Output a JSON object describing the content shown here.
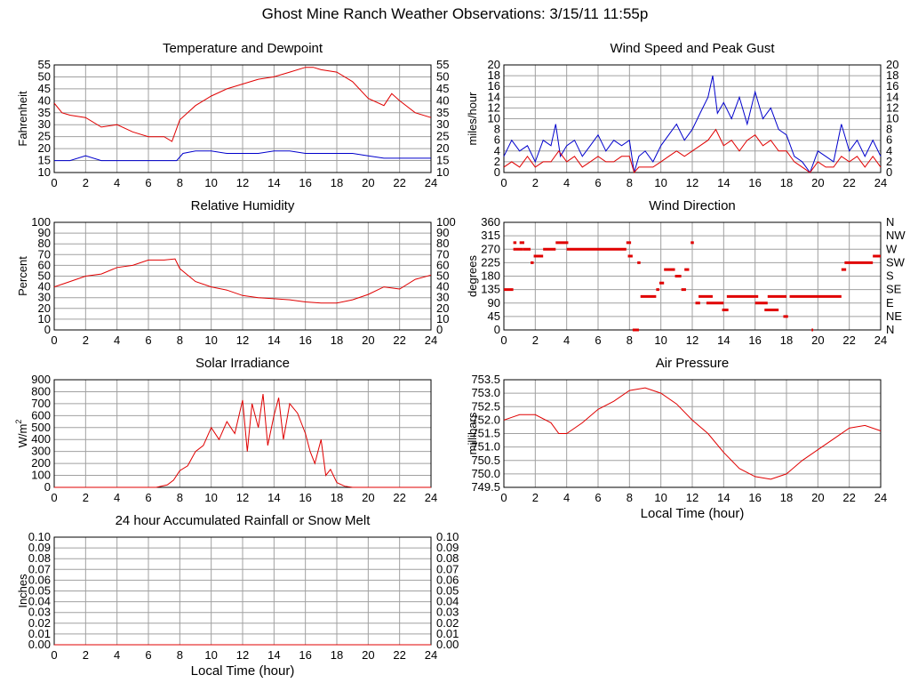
{
  "page": {
    "title": "Ghost Mine Ranch Weather Observations: 3/15/11 11:55p"
  },
  "colors": {
    "primary_series": "#e00000",
    "secondary_series": "#0000cc",
    "grid": "#a0a0a0",
    "frame": "#000000"
  },
  "chart_data": [
    {
      "id": "temperature",
      "type": "line",
      "title": "Temperature and Dewpoint",
      "xlabel": "",
      "ylabel": "Fahrenheit",
      "xlim": [
        0,
        24
      ],
      "ylim": [
        10,
        55
      ],
      "x_ticks": [
        0,
        2,
        4,
        6,
        8,
        10,
        12,
        14,
        16,
        18,
        20,
        22,
        24
      ],
      "y_ticks": [
        10,
        15,
        20,
        25,
        30,
        35,
        40,
        45,
        50,
        55
      ],
      "y_tick_labels": [
        "10",
        "15",
        "20",
        "25",
        "30",
        "35",
        "40",
        "45",
        "50",
        "55"
      ],
      "right_tick_labels": [
        "10",
        "15",
        "20",
        "25",
        "30",
        "35",
        "40",
        "45",
        "50",
        "55"
      ],
      "grid": true,
      "series": [
        {
          "color": "#e00000",
          "x": [
            0,
            0.5,
            1,
            2,
            3,
            4,
            5,
            6,
            7,
            7.5,
            8,
            9,
            10,
            11,
            12,
            13,
            14,
            15,
            16,
            16.5,
            17,
            18,
            19,
            20,
            21,
            21.5,
            22,
            23,
            24
          ],
          "y": [
            39,
            35,
            34,
            33,
            29,
            30,
            27,
            25,
            25,
            23,
            32,
            38,
            42,
            45,
            47,
            49,
            50,
            52,
            54,
            54,
            53,
            52,
            48,
            41,
            38,
            43,
            40,
            35,
            33
          ]
        },
        {
          "color": "#0000cc",
          "x": [
            0,
            1,
            2,
            3,
            4,
            5,
            6,
            7,
            7.8,
            8.2,
            9,
            10,
            11,
            12,
            13,
            14,
            15,
            16,
            17,
            18,
            19,
            20,
            21,
            22,
            23,
            24
          ],
          "y": [
            15,
            15,
            17,
            15,
            15,
            15,
            15,
            15,
            15,
            18,
            19,
            19,
            18,
            18,
            18,
            19,
            19,
            18,
            18,
            18,
            18,
            17,
            16,
            16,
            16,
            16
          ]
        }
      ]
    },
    {
      "id": "wind-speed",
      "type": "line",
      "title": "Wind Speed and Peak Gust",
      "xlabel": "",
      "ylabel": "miles/hour",
      "xlim": [
        0,
        24
      ],
      "ylim": [
        0,
        20
      ],
      "x_ticks": [
        0,
        2,
        4,
        6,
        8,
        10,
        12,
        14,
        16,
        18,
        20,
        22,
        24
      ],
      "y_ticks": [
        0,
        2,
        4,
        6,
        8,
        10,
        12,
        14,
        16,
        18,
        20
      ],
      "y_tick_labels": [
        "0",
        "2",
        "4",
        "6",
        "8",
        "10",
        "12",
        "14",
        "16",
        "18",
        "20"
      ],
      "right_tick_labels": [
        "0",
        "2",
        "4",
        "6",
        "8",
        "10",
        "12",
        "14",
        "16",
        "18",
        "20"
      ],
      "grid": true,
      "series": [
        {
          "color": "#0000cc",
          "x": [
            0,
            0.5,
            1,
            1.5,
            2,
            2.5,
            3,
            3.3,
            3.6,
            4,
            4.5,
            5,
            5.5,
            6,
            6.5,
            7,
            7.5,
            8,
            8.3,
            8.6,
            9,
            9.5,
            10,
            10.5,
            11,
            11.5,
            12,
            12.5,
            13,
            13.3,
            13.6,
            14,
            14.5,
            15,
            15.5,
            16,
            16.5,
            17,
            17.5,
            18,
            18.5,
            19,
            19.5,
            20,
            20.5,
            21,
            21.5,
            22,
            22.5,
            23,
            23.5,
            24
          ],
          "y": [
            3,
            6,
            4,
            5,
            2,
            6,
            5,
            9,
            3,
            5,
            6,
            3,
            5,
            7,
            4,
            6,
            5,
            6,
            0,
            3,
            4,
            2,
            5,
            7,
            9,
            6,
            8,
            11,
            14,
            18,
            11,
            13,
            10,
            14,
            9,
            15,
            10,
            12,
            8,
            7,
            3,
            2,
            0,
            4,
            3,
            2,
            9,
            4,
            6,
            3,
            6,
            3
          ]
        },
        {
          "color": "#e00000",
          "x": [
            0,
            0.5,
            1,
            1.5,
            2,
            2.5,
            3,
            3.5,
            4,
            4.5,
            5,
            5.5,
            6,
            6.5,
            7,
            7.5,
            8,
            8.3,
            8.6,
            9,
            9.5,
            10,
            10.5,
            11,
            11.5,
            12,
            12.5,
            13,
            13.5,
            14,
            14.5,
            15,
            15.5,
            16,
            16.5,
            17,
            17.5,
            18,
            18.5,
            19,
            19.5,
            20,
            20.5,
            21,
            21.5,
            22,
            22.5,
            23,
            23.5,
            24
          ],
          "y": [
            1,
            2,
            1,
            3,
            1,
            2,
            2,
            4,
            2,
            3,
            1,
            2,
            3,
            2,
            2,
            3,
            3,
            0,
            1,
            1,
            1,
            2,
            3,
            4,
            3,
            4,
            5,
            6,
            8,
            5,
            6,
            4,
            6,
            7,
            5,
            6,
            4,
            4,
            2,
            1,
            0,
            2,
            1,
            1,
            3,
            2,
            3,
            1,
            3,
            1
          ]
        }
      ]
    },
    {
      "id": "humidity",
      "type": "line",
      "title": "Relative Humidity",
      "xlabel": "",
      "ylabel": "Percent",
      "xlim": [
        0,
        24
      ],
      "ylim": [
        0,
        100
      ],
      "x_ticks": [
        0,
        2,
        4,
        6,
        8,
        10,
        12,
        14,
        16,
        18,
        20,
        22,
        24
      ],
      "y_ticks": [
        0,
        10,
        20,
        30,
        40,
        50,
        60,
        70,
        80,
        90,
        100
      ],
      "y_tick_labels": [
        "0",
        "10",
        "20",
        "30",
        "40",
        "50",
        "60",
        "70",
        "80",
        "90",
        "100"
      ],
      "right_tick_labels": [
        "0",
        "10",
        "20",
        "30",
        "40",
        "50",
        "60",
        "70",
        "80",
        "90",
        "100"
      ],
      "grid": true,
      "series": [
        {
          "color": "#e00000",
          "x": [
            0,
            1,
            2,
            3,
            4,
            5,
            6,
            7,
            7.7,
            8,
            9,
            10,
            11,
            12,
            13,
            14,
            15,
            16,
            17,
            18,
            19,
            20,
            21,
            22,
            23,
            24
          ],
          "y": [
            40,
            45,
            50,
            52,
            58,
            60,
            65,
            65,
            66,
            57,
            45,
            40,
            37,
            32,
            30,
            29,
            28,
            26,
            25,
            25,
            28,
            33,
            40,
            38,
            47,
            51
          ]
        }
      ]
    },
    {
      "id": "wind-direction",
      "type": "scatter",
      "title": "Wind Direction",
      "xlabel": "",
      "ylabel": "degrees",
      "xlim": [
        0,
        24
      ],
      "ylim": [
        0,
        360
      ],
      "x_ticks": [
        0,
        2,
        4,
        6,
        8,
        10,
        12,
        14,
        16,
        18,
        20,
        22,
        24
      ],
      "y_ticks": [
        0,
        45,
        90,
        135,
        180,
        225,
        270,
        315,
        360
      ],
      "y_tick_labels": [
        "0",
        "45",
        "90",
        "135",
        "180",
        "225",
        "270",
        "315",
        "360"
      ],
      "right_tick_labels": [
        "N",
        "NE",
        "E",
        "SE",
        "S",
        "SW",
        "W",
        "NW",
        "N"
      ],
      "grid": true,
      "series": [
        {
          "color": "#e00000",
          "segments": [
            [
              0,
              0.6,
              135
            ],
            [
              0.6,
              1.2,
              270
            ],
            [
              0.6,
              0.8,
              292
            ],
            [
              1.0,
              1.3,
              292
            ],
            [
              1.2,
              1.7,
              270
            ],
            [
              1.7,
              1.9,
              225
            ],
            [
              1.9,
              2.5,
              247
            ],
            [
              2.5,
              3.3,
              270
            ],
            [
              3.3,
              4.1,
              292
            ],
            [
              4.0,
              7.8,
              270
            ],
            [
              7.8,
              8.1,
              292
            ],
            [
              7.9,
              8.2,
              247
            ],
            [
              8.2,
              8.6,
              0
            ],
            [
              8.5,
              8.7,
              225
            ],
            [
              8.7,
              9.7,
              112
            ],
            [
              9.7,
              9.9,
              135
            ],
            [
              9.9,
              10.2,
              157
            ],
            [
              10.2,
              10.9,
              202
            ],
            [
              10.9,
              11.3,
              180
            ],
            [
              11.3,
              11.6,
              135
            ],
            [
              11.5,
              11.8,
              202
            ],
            [
              11.9,
              12.1,
              292
            ],
            [
              12.2,
              12.5,
              90
            ],
            [
              12.4,
              13.3,
              112
            ],
            [
              12.9,
              14.0,
              90
            ],
            [
              13.9,
              14.3,
              67
            ],
            [
              14.2,
              16.2,
              112
            ],
            [
              16.0,
              16.8,
              90
            ],
            [
              16.6,
              17.5,
              67
            ],
            [
              16.8,
              18.0,
              112
            ],
            [
              17.8,
              18.1,
              45
            ],
            [
              18.2,
              21.5,
              112
            ],
            [
              19.6,
              19.7,
              0
            ],
            [
              21.5,
              21.8,
              202
            ],
            [
              21.7,
              23.5,
              225
            ],
            [
              23.5,
              24.0,
              247
            ]
          ]
        }
      ]
    },
    {
      "id": "solar",
      "type": "line",
      "title": "Solar Irradiance",
      "xlabel": "",
      "ylabel": "W/m2",
      "xlim": [
        0,
        24
      ],
      "ylim": [
        0,
        900
      ],
      "x_ticks": [
        0,
        2,
        4,
        6,
        8,
        10,
        12,
        14,
        16,
        18,
        20,
        22,
        24
      ],
      "y_ticks": [
        0,
        100,
        200,
        300,
        400,
        500,
        600,
        700,
        800,
        900
      ],
      "y_tick_labels": [
        "0",
        "100",
        "200",
        "300",
        "400",
        "500",
        "600",
        "700",
        "800",
        "900"
      ],
      "right_tick_labels": [],
      "grid": true,
      "series": [
        {
          "color": "#e00000",
          "x": [
            0,
            6.5,
            7.2,
            7.6,
            8,
            8.5,
            9,
            9.5,
            10,
            10.5,
            11,
            11.5,
            12,
            12.3,
            12.6,
            13,
            13.3,
            13.6,
            14,
            14.3,
            14.6,
            15,
            15.5,
            16,
            16.3,
            16.6,
            17,
            17.3,
            17.6,
            18,
            18.5,
            19,
            24
          ],
          "y": [
            0,
            0,
            20,
            60,
            140,
            180,
            300,
            350,
            500,
            400,
            550,
            450,
            730,
            300,
            700,
            500,
            780,
            350,
            600,
            750,
            400,
            700,
            620,
            450,
            300,
            200,
            400,
            100,
            150,
            40,
            10,
            0,
            0
          ]
        }
      ]
    },
    {
      "id": "pressure",
      "type": "line",
      "title": "Air Pressure",
      "xlabel": "Local Time (hour)",
      "ylabel": "millibars",
      "xlim": [
        0,
        24
      ],
      "ylim": [
        749.5,
        753.5
      ],
      "x_ticks": [
        0,
        2,
        4,
        6,
        8,
        10,
        12,
        14,
        16,
        18,
        20,
        22,
        24
      ],
      "y_ticks": [
        749.5,
        750.0,
        750.5,
        751.0,
        751.5,
        752.0,
        752.5,
        753.0,
        753.5
      ],
      "y_tick_labels": [
        "749.5",
        "750.0",
        "750.5",
        "751.0",
        "751.5",
        "752.0",
        "752.5",
        "753.0",
        "753.5"
      ],
      "right_tick_labels": [],
      "grid": true,
      "series": [
        {
          "color": "#e00000",
          "x": [
            0,
            0.5,
            1,
            2,
            3,
            3.5,
            4,
            5,
            6,
            7,
            8,
            9,
            10,
            11,
            12,
            13,
            14,
            15,
            16,
            17,
            18,
            19,
            20,
            21,
            22,
            23,
            24
          ],
          "y": [
            752.0,
            752.1,
            752.2,
            752.2,
            751.9,
            751.5,
            751.5,
            751.9,
            752.4,
            752.7,
            753.1,
            753.2,
            753.0,
            752.6,
            752.0,
            751.5,
            750.8,
            750.2,
            749.9,
            749.8,
            750.0,
            750.5,
            750.9,
            751.3,
            751.7,
            751.8,
            751.6
          ]
        }
      ]
    },
    {
      "id": "rainfall",
      "type": "line",
      "title": "24 hour Accumulated Rainfall or Snow Melt",
      "xlabel": "Local Time (hour)",
      "ylabel": "Inches",
      "xlim": [
        0,
        24
      ],
      "ylim": [
        0,
        0.1
      ],
      "x_ticks": [
        0,
        2,
        4,
        6,
        8,
        10,
        12,
        14,
        16,
        18,
        20,
        22,
        24
      ],
      "y_ticks": [
        0,
        0.01,
        0.02,
        0.03,
        0.04,
        0.05,
        0.06,
        0.07,
        0.08,
        0.09,
        0.1
      ],
      "y_tick_labels": [
        "0.00",
        "0.01",
        "0.02",
        "0.03",
        "0.04",
        "0.05",
        "0.06",
        "0.07",
        "0.08",
        "0.09",
        "0.10"
      ],
      "right_tick_labels": [
        "0.00",
        "0.01",
        "0.02",
        "0.03",
        "0.04",
        "0.05",
        "0.06",
        "0.07",
        "0.08",
        "0.09",
        "0.10"
      ],
      "grid": true,
      "series": [
        {
          "color": "#e00000",
          "x": [
            0,
            24
          ],
          "y": [
            0,
            0
          ]
        }
      ]
    }
  ]
}
